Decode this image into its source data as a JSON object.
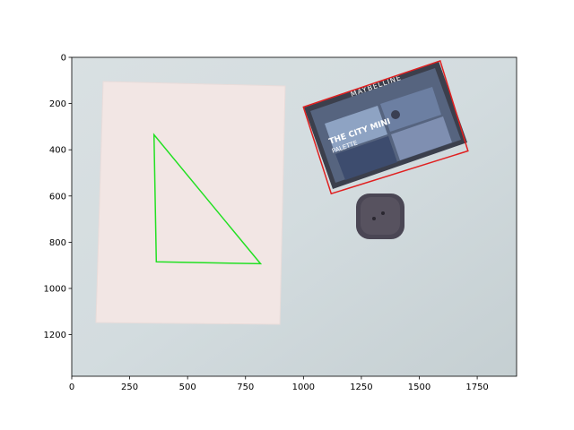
{
  "image": {
    "background_color": "#d3dcdf",
    "paper_color": "#f2e6e4",
    "triangle_color": "#22e022",
    "box_outline_color": "#e02020",
    "palette_color": "#4c5a78",
    "puck_color": "#4a4654"
  },
  "axes": {
    "x_ticks": [
      {
        "value": 0,
        "label": "0"
      },
      {
        "value": 250,
        "label": "250"
      },
      {
        "value": 500,
        "label": "500"
      },
      {
        "value": 750,
        "label": "750"
      },
      {
        "value": 1000,
        "label": "1000"
      },
      {
        "value": 1250,
        "label": "1250"
      },
      {
        "value": 1500,
        "label": "1500"
      },
      {
        "value": 1750,
        "label": "1750"
      }
    ],
    "y_ticks": [
      {
        "value": 0,
        "label": "0"
      },
      {
        "value": 200,
        "label": "200"
      },
      {
        "value": 400,
        "label": "400"
      },
      {
        "value": 600,
        "label": "600"
      },
      {
        "value": 800,
        "label": "800"
      },
      {
        "value": 1000,
        "label": "1000"
      },
      {
        "value": 1200,
        "label": "1200"
      }
    ],
    "x_range": [
      0,
      1920
    ],
    "y_range": [
      1380,
      0
    ]
  },
  "annotations": {
    "triangle": [
      [
        355,
        335
      ],
      [
        365,
        885
      ],
      [
        815,
        893
      ]
    ],
    "red_box": [
      [
        1000,
        215
      ],
      [
        1590,
        15
      ],
      [
        1710,
        405
      ],
      [
        1120,
        590
      ]
    ]
  },
  "product": {
    "brand": "MAYBELLINE",
    "line1": "THE CITY MINI",
    "line2": "PALETTE"
  }
}
